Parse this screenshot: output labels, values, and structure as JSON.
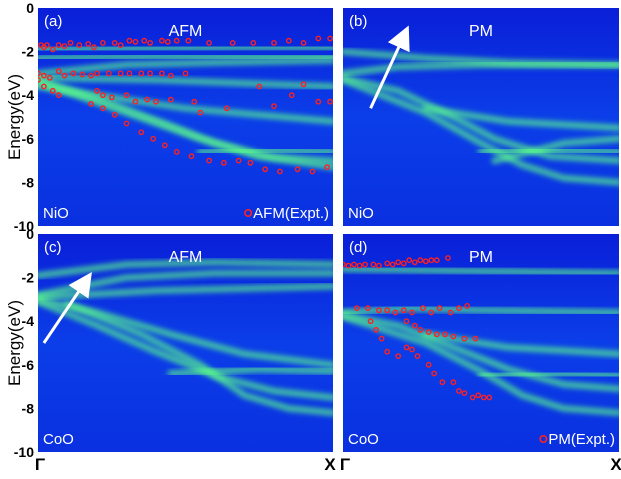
{
  "chart_data": {
    "type": "heatmap",
    "ylabel": "Energy(eV)",
    "ylim": [
      -10,
      0
    ],
    "yticks": [
      "0",
      "-2",
      "-4",
      "-6",
      "-8",
      "-10"
    ],
    "xticks": [
      "Γ",
      "X"
    ],
    "colors": {
      "background": "#0a32e6",
      "band": "#5dff8a",
      "expt_marker": "#ff2020",
      "arrow": "#ffffff"
    },
    "panels": [
      {
        "label": "(a)",
        "title": "AFM",
        "material": "NiO",
        "legend": "AFM(Expt.)",
        "bands": [
          [
            [
              0,
              -1.9
            ],
            [
              0.3,
              -1.85
            ],
            [
              0.7,
              -1.8
            ],
            [
              1,
              -1.8
            ]
          ],
          [
            [
              0,
              -2.3
            ],
            [
              0.4,
              -2.2
            ],
            [
              1,
              -2.2
            ]
          ],
          [
            [
              0,
              -3.0
            ],
            [
              0.3,
              -2.6
            ],
            [
              0.6,
              -2.5
            ],
            [
              1,
              -2.4
            ]
          ],
          [
            [
              0,
              -3.2
            ],
            [
              0.4,
              -3.3
            ],
            [
              0.8,
              -3.5
            ],
            [
              1,
              -3.6
            ]
          ],
          [
            [
              0,
              -3.3
            ],
            [
              0.25,
              -4.4
            ],
            [
              0.45,
              -5.4
            ],
            [
              0.6,
              -6.2
            ],
            [
              0.75,
              -6.8
            ],
            [
              1,
              -7.0
            ]
          ],
          [
            [
              0,
              -3.4
            ],
            [
              0.3,
              -4.8
            ],
            [
              0.55,
              -6.0
            ],
            [
              0.8,
              -6.9
            ],
            [
              1,
              -7.3
            ]
          ],
          [
            [
              0,
              -3.6
            ],
            [
              0.5,
              -4.6
            ],
            [
              1,
              -5.2
            ]
          ],
          [
            [
              0.55,
              -6.6
            ],
            [
              0.8,
              -6.5
            ],
            [
              1,
              -6.6
            ]
          ]
        ],
        "expt": [
          [
            0.01,
            -1.7
          ],
          [
            0.02,
            -1.8
          ],
          [
            0.03,
            -1.7
          ],
          [
            0.05,
            -1.9
          ],
          [
            0.07,
            -1.7
          ],
          [
            0.09,
            -1.75
          ],
          [
            0.11,
            -1.6
          ],
          [
            0.14,
            -1.7
          ],
          [
            0.17,
            -1.65
          ],
          [
            0.19,
            -1.8
          ],
          [
            0.22,
            -1.6
          ],
          [
            0.26,
            -1.6
          ],
          [
            0.28,
            -1.7
          ],
          [
            0.31,
            -1.5
          ],
          [
            0.33,
            -1.55
          ],
          [
            0.36,
            -1.5
          ],
          [
            0.38,
            -1.6
          ],
          [
            0.42,
            -1.5
          ],
          [
            0.44,
            -1.55
          ],
          [
            0.47,
            -1.5
          ],
          [
            0.51,
            -1.5
          ],
          [
            0.58,
            -1.6
          ],
          [
            0.66,
            -1.6
          ],
          [
            0.73,
            -1.6
          ],
          [
            0.8,
            -1.6
          ],
          [
            0.85,
            -1.5
          ],
          [
            0.9,
            -1.6
          ],
          [
            0.95,
            -1.4
          ],
          [
            0.99,
            -1.4
          ],
          [
            0.0,
            -3.0
          ],
          [
            0.02,
            -3.1
          ],
          [
            0.04,
            -3.2
          ],
          [
            0.07,
            -2.9
          ],
          [
            0.09,
            -3.1
          ],
          [
            0.12,
            -3.0
          ],
          [
            0.15,
            -3.05
          ],
          [
            0.18,
            -3.1
          ],
          [
            0.2,
            -3.0
          ],
          [
            0.24,
            -3.0
          ],
          [
            0.28,
            -3.0
          ],
          [
            0.31,
            -3.0
          ],
          [
            0.35,
            -3.0
          ],
          [
            0.38,
            -3.0
          ],
          [
            0.42,
            -3.0
          ],
          [
            0.45,
            -3.1
          ],
          [
            0.5,
            -3.0
          ],
          [
            0.0,
            -3.3
          ],
          [
            0.02,
            -3.6
          ],
          [
            0.05,
            -3.8
          ],
          [
            0.07,
            -4.0
          ],
          [
            0.2,
            -3.8
          ],
          [
            0.22,
            -4.0
          ],
          [
            0.25,
            -4.1
          ],
          [
            0.3,
            -4.0
          ],
          [
            0.33,
            -4.3
          ],
          [
            0.37,
            -4.2
          ],
          [
            0.4,
            -4.3
          ],
          [
            0.45,
            -4.2
          ],
          [
            0.53,
            -4.3
          ],
          [
            0.55,
            -4.8
          ],
          [
            0.64,
            -4.6
          ],
          [
            0.75,
            -3.6
          ],
          [
            0.8,
            -4.5
          ],
          [
            0.86,
            -4.0
          ],
          [
            0.9,
            -3.5
          ],
          [
            0.95,
            -4.3
          ],
          [
            0.99,
            -4.3
          ],
          [
            0.18,
            -4.4
          ],
          [
            0.22,
            -4.6
          ],
          [
            0.26,
            -4.9
          ],
          [
            0.3,
            -5.3
          ],
          [
            0.35,
            -5.7
          ],
          [
            0.39,
            -6.0
          ],
          [
            0.43,
            -6.3
          ],
          [
            0.47,
            -6.6
          ],
          [
            0.52,
            -6.8
          ],
          [
            0.58,
            -7.0
          ],
          [
            0.63,
            -7.1
          ],
          [
            0.68,
            -7.0
          ],
          [
            0.72,
            -7.1
          ],
          [
            0.77,
            -7.4
          ],
          [
            0.82,
            -7.5
          ],
          [
            0.88,
            -7.4
          ],
          [
            0.93,
            -7.5
          ],
          [
            0.98,
            -7.3
          ]
        ]
      },
      {
        "label": "(b)",
        "title": "PM",
        "material": "NiO",
        "legend": "",
        "bands": [
          [
            [
              0,
              -2.0
            ],
            [
              0.3,
              -2.3
            ],
            [
              0.6,
              -2.5
            ],
            [
              1,
              -2.6
            ]
          ],
          [
            [
              0,
              -3.0
            ],
            [
              0.2,
              -2.7
            ],
            [
              0.5,
              -2.6
            ],
            [
              1,
              -2.6
            ]
          ],
          [
            [
              0,
              -3.2
            ],
            [
              0.2,
              -3.8
            ],
            [
              0.4,
              -5.0
            ],
            [
              0.55,
              -6.0
            ],
            [
              0.75,
              -6.8
            ],
            [
              1,
              -7.0
            ]
          ],
          [
            [
              0,
              -3.3
            ],
            [
              0.3,
              -4.8
            ],
            [
              0.5,
              -6.2
            ],
            [
              0.65,
              -7.2
            ],
            [
              0.8,
              -7.8
            ],
            [
              1,
              -8.0
            ]
          ],
          [
            [
              0.3,
              -4.6
            ],
            [
              0.6,
              -5.2
            ],
            [
              1,
              -5.5
            ]
          ],
          [
            [
              0.5,
              -6.6
            ],
            [
              0.8,
              -6.5
            ],
            [
              1,
              -6.6
            ]
          ],
          [
            [
              0.55,
              -7.0
            ],
            [
              0.8,
              -6.2
            ],
            [
              1,
              -6.0
            ]
          ]
        ],
        "expt": [],
        "arrow": [
          [
            0.1,
            -4.6
          ],
          [
            0.22,
            -1.3
          ]
        ]
      },
      {
        "label": "(c)",
        "title": "AFM",
        "material": "CoO",
        "legend": "",
        "bands": [
          [
            [
              0,
              -1.9
            ],
            [
              0.3,
              -1.4
            ],
            [
              0.6,
              -1.3
            ],
            [
              1,
              -1.4
            ]
          ],
          [
            [
              0,
              -2.8
            ],
            [
              0.3,
              -2.0
            ],
            [
              0.6,
              -1.8
            ],
            [
              1,
              -1.8
            ]
          ],
          [
            [
              0,
              -2.9
            ],
            [
              0.4,
              -2.6
            ],
            [
              1,
              -2.4
            ]
          ],
          [
            [
              0,
              -3.0
            ],
            [
              0.2,
              -3.6
            ],
            [
              0.45,
              -4.6
            ],
            [
              0.7,
              -5.5
            ],
            [
              1,
              -6.0
            ]
          ],
          [
            [
              0,
              -3.1
            ],
            [
              0.2,
              -4.2
            ],
            [
              0.4,
              -5.4
            ],
            [
              0.6,
              -6.5
            ],
            [
              0.8,
              -7.2
            ],
            [
              1,
              -7.5
            ]
          ],
          [
            [
              0.1,
              -3.2
            ],
            [
              0.35,
              -4.6
            ],
            [
              0.55,
              -6.0
            ],
            [
              0.7,
              -7.4
            ],
            [
              0.85,
              -8.0
            ],
            [
              1,
              -8.2
            ]
          ],
          [
            [
              0.45,
              -6.4
            ],
            [
              0.75,
              -6.2
            ],
            [
              1,
              -6.3
            ]
          ]
        ],
        "expt": [],
        "arrow": [
          [
            0.02,
            -5.0
          ],
          [
            0.16,
            -2.2
          ]
        ]
      },
      {
        "label": "(d)",
        "title": "PM",
        "material": "CoO",
        "legend": "PM(Expt.)",
        "bands": [
          [
            [
              0,
              -1.6
            ],
            [
              0.5,
              -1.7
            ],
            [
              1,
              -1.8
            ]
          ],
          [
            [
              0,
              -3.6
            ],
            [
              0.25,
              -3.4
            ],
            [
              0.5,
              -3.5
            ],
            [
              1,
              -3.6
            ]
          ],
          [
            [
              0,
              -3.7
            ],
            [
              0.2,
              -4.2
            ],
            [
              0.4,
              -5.2
            ],
            [
              0.6,
              -6.2
            ],
            [
              0.8,
              -6.9
            ],
            [
              1,
              -7.1
            ]
          ],
          [
            [
              0,
              -3.8
            ],
            [
              0.3,
              -5.0
            ],
            [
              0.5,
              -6.3
            ],
            [
              0.65,
              -7.4
            ],
            [
              0.8,
              -8.0
            ],
            [
              1,
              -8.2
            ]
          ],
          [
            [
              0.3,
              -4.6
            ],
            [
              0.6,
              -5.2
            ],
            [
              1,
              -5.5
            ]
          ],
          [
            [
              0.5,
              -6.5
            ],
            [
              0.8,
              -6.4
            ],
            [
              1,
              -6.5
            ]
          ]
        ],
        "expt": [
          [
            0.0,
            -1.4
          ],
          [
            0.02,
            -1.45
          ],
          [
            0.04,
            -1.4
          ],
          [
            0.06,
            -1.45
          ],
          [
            0.08,
            -1.4
          ],
          [
            0.11,
            -1.4
          ],
          [
            0.13,
            -1.45
          ],
          [
            0.16,
            -1.35
          ],
          [
            0.18,
            -1.4
          ],
          [
            0.2,
            -1.3
          ],
          [
            0.22,
            -1.35
          ],
          [
            0.24,
            -1.2
          ],
          [
            0.26,
            -1.3
          ],
          [
            0.28,
            -1.2
          ],
          [
            0.3,
            -1.25
          ],
          [
            0.32,
            -1.2
          ],
          [
            0.34,
            -1.2
          ],
          [
            0.38,
            -1.1
          ],
          [
            0.05,
            -3.4
          ],
          [
            0.09,
            -3.4
          ],
          [
            0.13,
            -3.5
          ],
          [
            0.16,
            -3.5
          ],
          [
            0.19,
            -3.6
          ],
          [
            0.22,
            -3.5
          ],
          [
            0.25,
            -3.6
          ],
          [
            0.29,
            -3.4
          ],
          [
            0.32,
            -3.6
          ],
          [
            0.35,
            -3.4
          ],
          [
            0.39,
            -3.6
          ],
          [
            0.42,
            -3.4
          ],
          [
            0.45,
            -3.3
          ],
          [
            0.23,
            -4.0
          ],
          [
            0.26,
            -4.2
          ],
          [
            0.28,
            -4.4
          ],
          [
            0.31,
            -4.5
          ],
          [
            0.34,
            -4.6
          ],
          [
            0.37,
            -4.6
          ],
          [
            0.4,
            -4.7
          ],
          [
            0.44,
            -4.8
          ],
          [
            0.48,
            -4.8
          ],
          [
            0.1,
            -4.0
          ],
          [
            0.12,
            -4.4
          ],
          [
            0.14,
            -4.8
          ],
          [
            0.16,
            -5.4
          ],
          [
            0.2,
            -5.6
          ],
          [
            0.23,
            -5.2
          ],
          [
            0.25,
            -5.3
          ],
          [
            0.27,
            -5.6
          ],
          [
            0.31,
            -6.0
          ],
          [
            0.33,
            -6.4
          ],
          [
            0.36,
            -6.8
          ],
          [
            0.4,
            -6.8
          ],
          [
            0.42,
            -7.2
          ],
          [
            0.44,
            -7.3
          ],
          [
            0.47,
            -7.5
          ],
          [
            0.49,
            -7.4
          ],
          [
            0.51,
            -7.5
          ],
          [
            0.53,
            -7.5
          ]
        ]
      }
    ]
  }
}
